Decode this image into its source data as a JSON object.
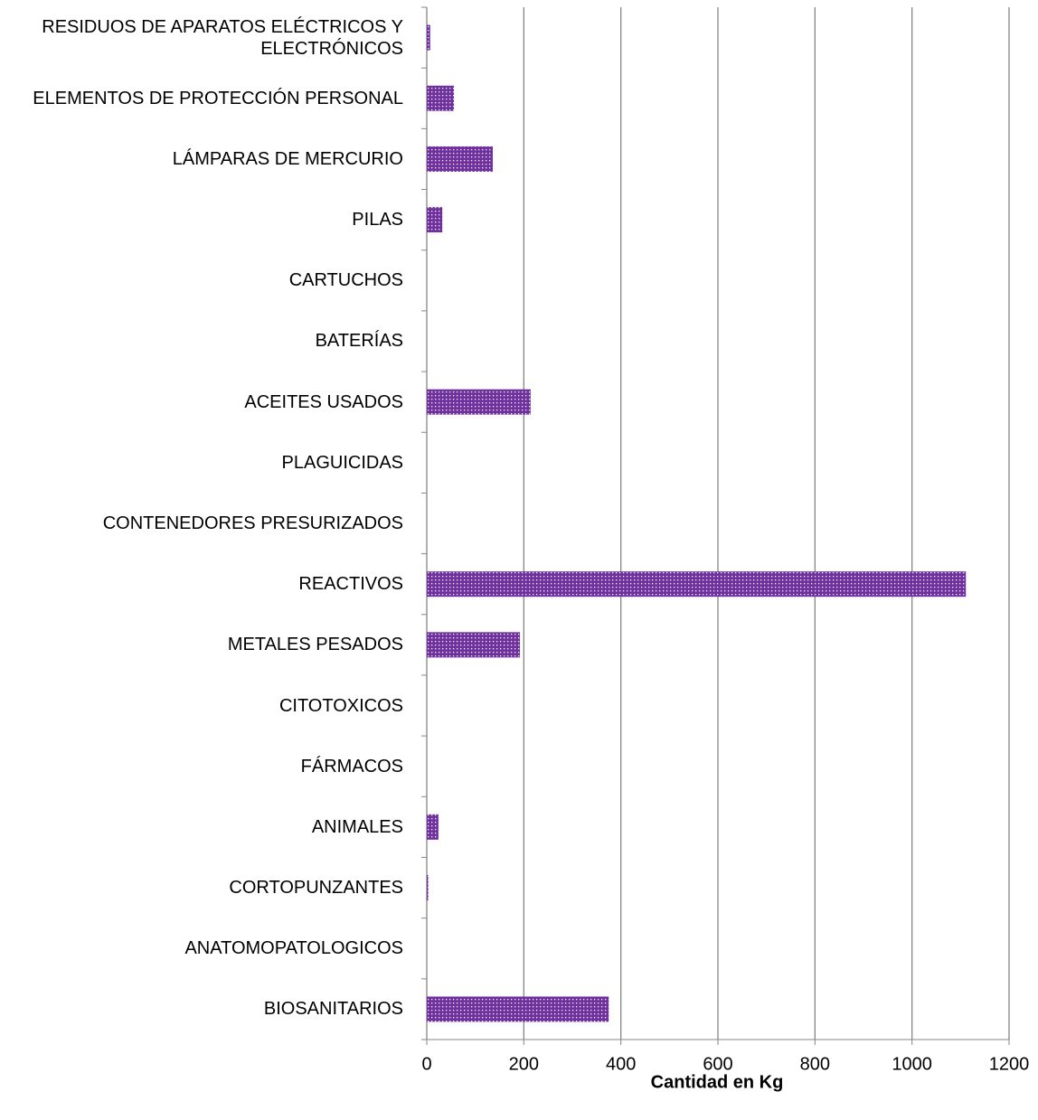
{
  "chart_data": {
    "type": "bar",
    "orientation": "horizontal",
    "categories": [
      "BIOSANITARIOS",
      "ANATOMOPATOLOGICOS",
      "CORTOPUNZANTES",
      "ANIMALES",
      "FÁRMACOS",
      "CITOTOXICOS",
      "METALES PESADOS",
      "REACTIVOS",
      "CONTENEDORES PRESURIZADOS",
      "PLAGUICIDAS",
      "ACEITES USADOS",
      "BATERÍAS",
      "CARTUCHOS",
      "PILAS",
      "LÁMPARAS DE MERCURIO",
      "ELEMENTOS DE PROTECCIÓN PERSONAL",
      "RESIDUOS DE APARATOS ELÉCTRICOS Y ELECTRÓNICOS"
    ],
    "values": [
      375,
      0,
      3,
      24,
      0,
      0,
      192,
      1111,
      0,
      0,
      214,
      0,
      0,
      32,
      136,
      56,
      7
    ],
    "color": "#7030a0",
    "xlabel": "Cantidad en Kg",
    "xlim": [
      0,
      1200
    ],
    "xticks": [
      0,
      200,
      400,
      600,
      800,
      1000,
      1200
    ],
    "grid": true
  }
}
